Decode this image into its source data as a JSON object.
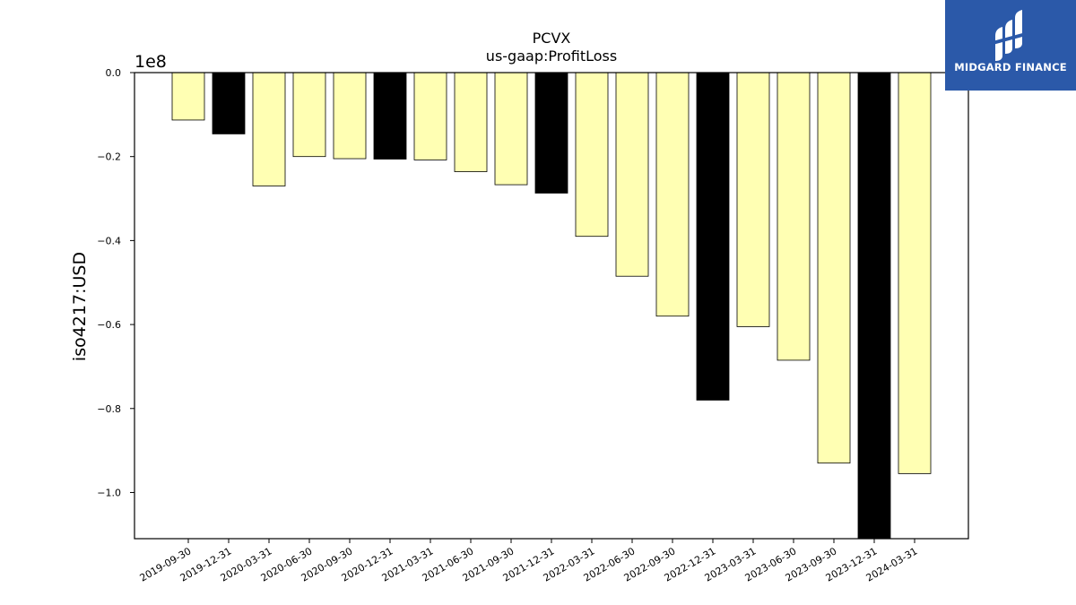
{
  "chart_data": {
    "type": "bar",
    "title": "PCVX",
    "subtitle": "us-gaap:ProfitLoss",
    "ylabel": "iso4217:USD",
    "xlabel": "",
    "scale_label": "1e8",
    "ylim": [
      -1.11,
      0.0
    ],
    "yticks": [
      0.0,
      -0.2,
      -0.4,
      -0.6,
      -0.8,
      -1.0
    ],
    "ytick_labels": [
      "0.0",
      "−0.2",
      "−0.4",
      "−0.6",
      "−0.8",
      "−1.0"
    ],
    "categories": [
      "2019-09-30",
      "2019-12-31",
      "2020-03-31",
      "2020-06-30",
      "2020-09-30",
      "2020-12-31",
      "2021-03-31",
      "2021-06-30",
      "2021-09-30",
      "2021-12-31",
      "2022-03-31",
      "2022-06-30",
      "2022-09-30",
      "2022-12-31",
      "2023-03-31",
      "2023-06-30",
      "2023-09-30",
      "2023-12-31",
      "2024-03-31"
    ],
    "values": [
      -0.113,
      -0.146,
      -0.27,
      -0.2,
      -0.205,
      -0.206,
      -0.208,
      -0.236,
      -0.267,
      -0.287,
      -0.39,
      -0.485,
      -0.58,
      -0.78,
      -0.605,
      -0.685,
      -0.93,
      -1.11,
      -0.955
    ],
    "bar_colors": [
      "#ffffb3",
      "#000000",
      "#ffffb3",
      "#ffffb3",
      "#ffffb3",
      "#000000",
      "#ffffb3",
      "#ffffb3",
      "#ffffb3",
      "#000000",
      "#ffffb3",
      "#ffffb3",
      "#ffffb3",
      "#000000",
      "#ffffb3",
      "#ffffb3",
      "#ffffb3",
      "#000000",
      "#ffffb3"
    ],
    "grid": false,
    "legend": "none"
  },
  "logo": {
    "brand": "MIDGARD FINANCE",
    "icon": "midgard-logo-icon",
    "background": "#2b59a9"
  }
}
